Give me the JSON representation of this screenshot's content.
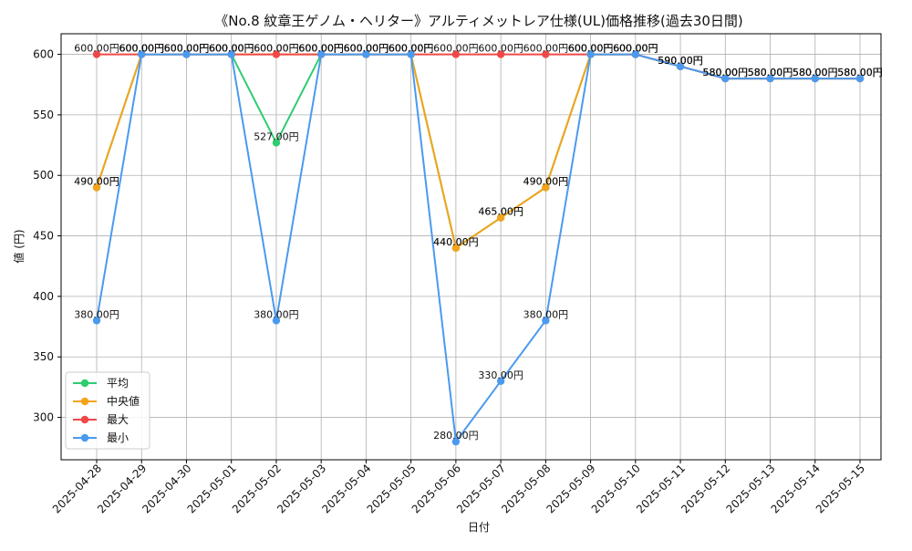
{
  "chart_data": {
    "type": "line",
    "title": "《No.8 紋章王ゲノム・ヘリター》アルティメットレア仕様(UL)価格推移(過去30日間)",
    "xlabel": "日付",
    "ylabel": "値 (円)",
    "ylim": [
      265,
      617
    ],
    "yticks": [
      300,
      350,
      400,
      450,
      500,
      550,
      600
    ],
    "legend_position": "bottom-left",
    "categories": [
      "2025-04-28",
      "2025-04-29",
      "2025-04-30",
      "2025-05-01",
      "2025-05-02",
      "2025-05-03",
      "2025-05-04",
      "2025-05-05",
      "2025-05-06",
      "2025-05-07",
      "2025-05-08",
      "2025-05-09",
      "2025-05-10",
      "2025-05-11",
      "2025-05-12",
      "2025-05-13",
      "2025-05-14",
      "2025-05-15"
    ],
    "series": [
      {
        "name": "平均",
        "color": "#2ecc71",
        "values": [
          490,
          600,
          600,
          600,
          527,
          600,
          600,
          600,
          440,
          465,
          490,
          600,
          600,
          590,
          580,
          580,
          580,
          580
        ]
      },
      {
        "name": "中央値",
        "color": "#f5a31a",
        "values": [
          490,
          600,
          600,
          600,
          600,
          600,
          600,
          600,
          440,
          465,
          490,
          600,
          600,
          590,
          580,
          580,
          580,
          580
        ]
      },
      {
        "name": "最大",
        "color": "#f04848",
        "values": [
          600,
          600,
          600,
          600,
          600,
          600,
          600,
          600,
          600,
          600,
          600,
          600,
          600,
          590,
          580,
          580,
          580,
          580
        ]
      },
      {
        "name": "最小",
        "color": "#4a9af0",
        "values": [
          380,
          600,
          600,
          600,
          380,
          600,
          600,
          600,
          280,
          330,
          380,
          600,
          600,
          590,
          580,
          580,
          580,
          580
        ]
      }
    ],
    "data_labels": [
      {
        "series": "平均",
        "items": [
          "490.00円",
          "600.00円",
          "600.00円",
          "600.00円",
          "527.00円",
          "600.00円",
          "600.00円",
          "600.00円",
          "440.00円",
          "465.00円",
          "490.00円",
          "600.00円",
          "600.00円",
          "590.00円",
          "580.00円",
          "580.00円",
          "580.00円",
          "580.00円"
        ]
      },
      {
        "series": "中央値",
        "items": [
          "490.00円",
          "600.00円",
          "600.00円",
          "600.00円",
          "600.00円",
          "600.00円",
          "600.00円",
          "600.00円",
          "440.00円",
          "465.00円",
          "490.00円",
          "600.00円",
          "600.00円",
          "590.00円",
          "580.00円",
          "580.00円",
          "580.00円",
          "580.00円"
        ]
      },
      {
        "series": "最大",
        "items": [
          "600.00円",
          "600.00円",
          "600.00円",
          "600.00円",
          "600.00円",
          "600.00円",
          "600.00円",
          "600.00円",
          "600.00円",
          "600.00円",
          "600.00円",
          "600.00円",
          "600.00円",
          "590.00円",
          "580.00円",
          "580.00円",
          "580.00円",
          "580.00円"
        ]
      },
      {
        "series": "最小",
        "items": [
          "380.00円",
          "600.00円",
          "600.00円",
          "600.00円",
          "380.00円",
          "600.00円",
          "600.00円",
          "600.00円",
          "280.00円",
          "330.00円",
          "380.00円",
          "600.00円",
          "600.00円",
          "590.00円",
          "580.00円",
          "580.00円",
          "580.00円",
          "580.00円"
        ]
      }
    ]
  }
}
